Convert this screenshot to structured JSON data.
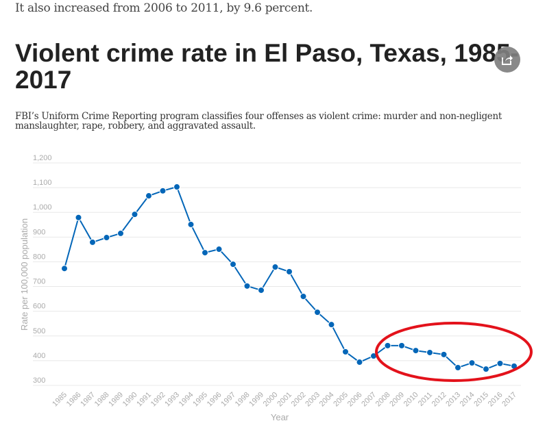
{
  "intro_text": "It also increased from 2006 to 2011, by 9.6 percent.",
  "share_icon": "share-icon",
  "colors": {
    "line": "#0366b8",
    "annotation": "#e3121b",
    "grid": "#e8e8e8",
    "tick": "#aaaaaa"
  },
  "chart_data": {
    "type": "line",
    "title": "Violent crime rate in El Paso, Texas, 1985-2017",
    "subtitle": "FBI’s Uniform Crime Reporting program classifies four offenses as violent crime: murder and non-negligent manslaughter, rape, robbery, and aggravated assault.",
    "xlabel": "Year",
    "ylabel": "Rate per 100,000 population",
    "ylim": [
      300,
      1200
    ],
    "yticks": [
      "1,200",
      "1,100",
      "1,000",
      "900",
      "800",
      "700",
      "600",
      "500",
      "400",
      "300"
    ],
    "ytick_values": [
      1200,
      1100,
      1000,
      900,
      800,
      700,
      600,
      500,
      400,
      300
    ],
    "grid": true,
    "categories": [
      "1985",
      "1986",
      "1987",
      "1988",
      "1989",
      "1990",
      "1991",
      "1992",
      "1993",
      "1994",
      "1995",
      "1996",
      "1997",
      "1998",
      "1999",
      "2000",
      "2001",
      "2002",
      "2003",
      "2004",
      "2005",
      "2006",
      "2007",
      "2008",
      "2009",
      "2010",
      "2011",
      "2012",
      "2013",
      "2014",
      "2015",
      "2016",
      "2017"
    ],
    "series": [
      {
        "name": "Violent crime rate",
        "values": [
          773,
          979,
          879,
          898,
          915,
          992,
          1067,
          1087,
          1103,
          951,
          837,
          851,
          790,
          702,
          685,
          779,
          760,
          660,
          596,
          546,
          436,
          394,
          419,
          461,
          461,
          441,
          433,
          425,
          372,
          391,
          366,
          389,
          378
        ]
      }
    ],
    "annotation": {
      "type": "ellipse",
      "covers_years": [
        "2008",
        "2017"
      ],
      "color": "#e3121b"
    }
  }
}
